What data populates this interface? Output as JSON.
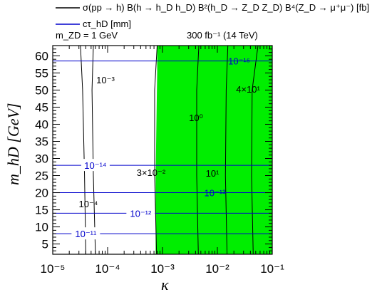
{
  "chart_data": {
    "type": "contour",
    "xscale": "log",
    "xlim": [
      1e-05,
      0.1
    ],
    "ylim": [
      2,
      63
    ],
    "xlabel": "κ",
    "ylabel": "m_hD [GeV]",
    "xticks": [
      "10⁻⁵",
      "10⁻⁴",
      "10⁻³",
      "10⁻²",
      "10⁻¹"
    ],
    "yticks": [
      "5",
      "10",
      "15",
      "20",
      "25",
      "30",
      "35",
      "40",
      "45",
      "50",
      "55",
      "60"
    ],
    "legend": [
      {
        "label": "σ(pp → h) B(h → h_D h_D) B²(h_D → Z_D Z_D) B⁴(Z_D → μ⁺μ⁻) [fb]",
        "color": "#000000"
      },
      {
        "label": "cτ_hD [mm]",
        "color": "#0000cc"
      }
    ],
    "annotation_left": "m_ZD = 1 GeV",
    "annotation_right": "300 fb⁻¹ (14 TeV)",
    "shaded_region": {
      "description": "green",
      "color": "#00ee00",
      "kappa_min_bottom": 0.00075,
      "kappa_min_top": 0.0008
    },
    "cross_section_contours": [
      {
        "label": "10⁻⁴",
        "points": [
          [
            4e-05,
            2
          ],
          [
            3.8e-05,
            25
          ],
          [
            3.5e-05,
            50
          ],
          [
            3.2e-05,
            63
          ]
        ]
      },
      {
        "label": "10⁻³",
        "points": [
          [
            6e-05,
            2
          ],
          [
            5.5e-05,
            25
          ],
          [
            5.2e-05,
            50
          ],
          [
            5.5e-05,
            63
          ]
        ]
      },
      {
        "label": "3×10⁻²",
        "points": [
          [
            0.00078,
            2
          ],
          [
            0.00072,
            25
          ],
          [
            0.00072,
            50
          ],
          [
            0.0008,
            63
          ]
        ]
      },
      {
        "label": "10⁰",
        "points": [
          [
            0.0045,
            2
          ],
          [
            0.0042,
            25
          ],
          [
            0.0042,
            50
          ],
          [
            0.0046,
            63
          ]
        ]
      },
      {
        "label": "10¹",
        "points": [
          [
            0.015,
            2
          ],
          [
            0.014,
            25
          ],
          [
            0.0145,
            50
          ],
          [
            0.0155,
            63
          ]
        ]
      },
      {
        "label": "4×10¹",
        "points": [
          [
            0.045,
            2
          ],
          [
            0.042,
            25
          ],
          [
            0.043,
            50
          ],
          [
            0.055,
            63
          ]
        ]
      }
    ],
    "ctau_contours": [
      {
        "label": "10⁻¹¹",
        "m": 8
      },
      {
        "label": "10⁻¹²",
        "m": 14
      },
      {
        "label": "10⁻¹³",
        "m": 20
      },
      {
        "label": "10⁻¹⁴",
        "m": 28
      },
      {
        "label": "10⁻¹⁵",
        "m": 58.5
      }
    ]
  }
}
